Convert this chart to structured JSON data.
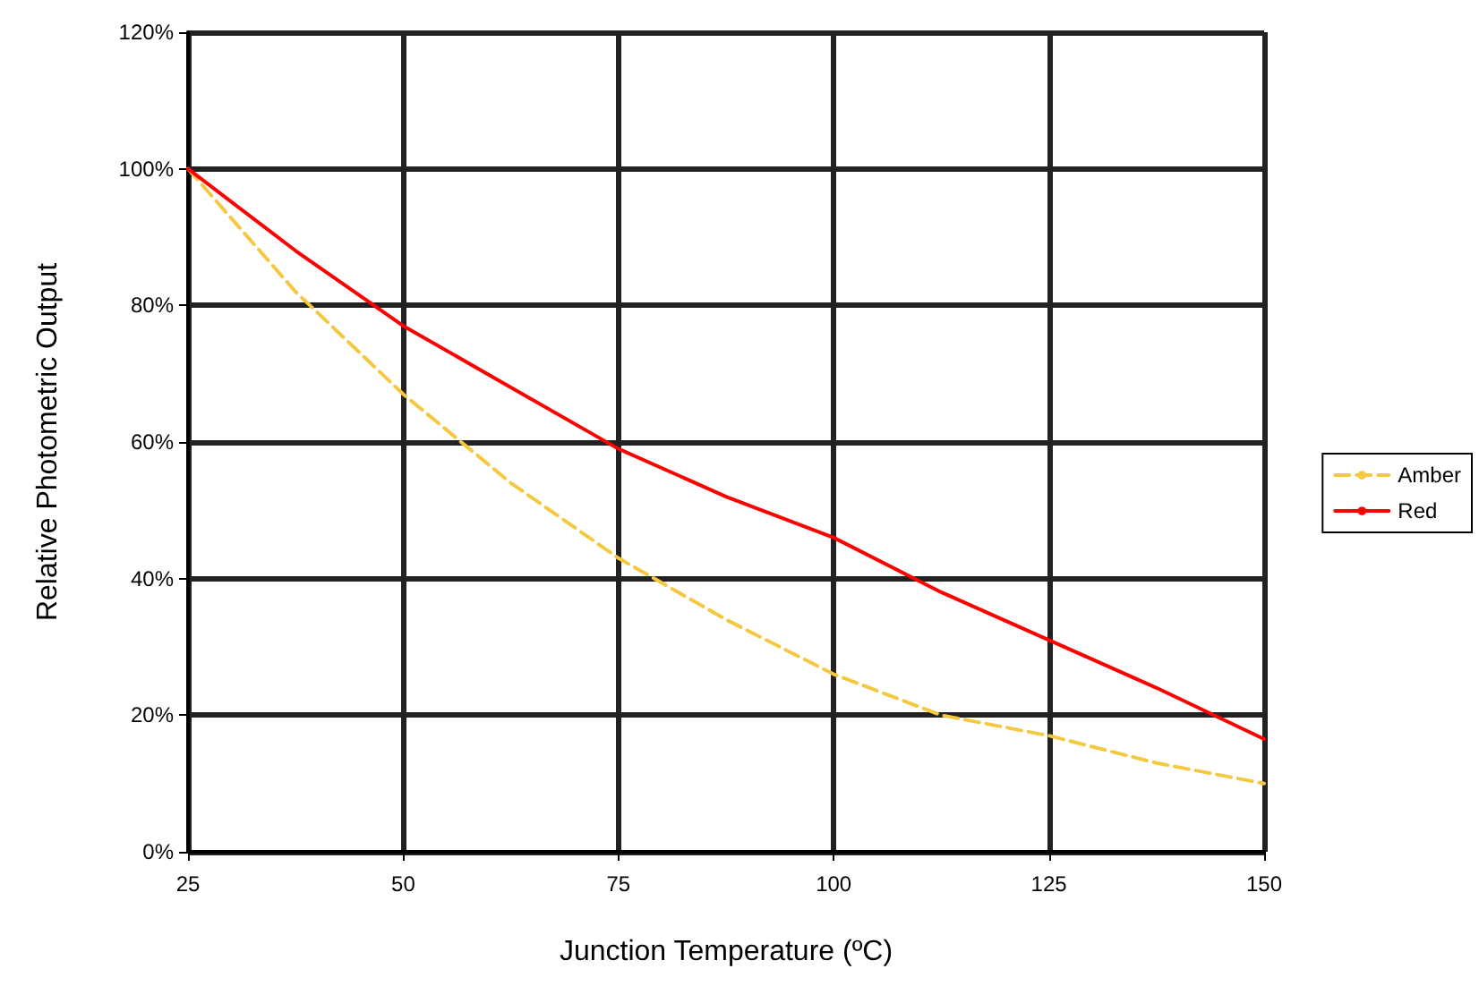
{
  "chart_data": {
    "type": "line",
    "xlabel": "Junction Temperature (ºC)",
    "ylabel": "Relative Photometric Output",
    "x": [
      25,
      37.5,
      50,
      62.5,
      75,
      87.5,
      100,
      112.5,
      125,
      137.5,
      150
    ],
    "series": [
      {
        "name": "Amber",
        "color": "#f5c842",
        "line_style": "dashed",
        "values": [
          100,
          82,
          67,
          54,
          43,
          34,
          26,
          20,
          17,
          13,
          10
        ]
      },
      {
        "name": "Red",
        "color": "#ff0000",
        "line_style": "solid",
        "values": [
          100,
          88,
          77,
          68,
          59,
          52,
          46,
          38,
          31,
          24,
          16.5
        ]
      }
    ],
    "xlim": [
      25,
      150
    ],
    "xticks": [
      25,
      50,
      75,
      100,
      125,
      150
    ],
    "ylim": [
      0,
      120
    ],
    "yticks": [
      {
        "value": 0,
        "label": "0%"
      },
      {
        "value": 20,
        "label": "20%"
      },
      {
        "value": 40,
        "label": "40%"
      },
      {
        "value": 60,
        "label": "60%"
      },
      {
        "value": 80,
        "label": "80%"
      },
      {
        "value": 100,
        "label": "100%"
      },
      {
        "value": 120,
        "label": "120%"
      }
    ],
    "grid": true,
    "legend": "right",
    "marker": "none"
  }
}
